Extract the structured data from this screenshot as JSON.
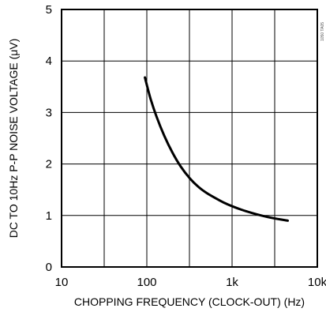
{
  "chart_data": {
    "type": "line",
    "xlabel": "CHOPPING FREQUENCY (CLOCK-OUT) (Hz)",
    "ylabel": "DC TO 10Hz P-P NOISE VOLTAGE (μV)",
    "xscale": "log",
    "xlim": [
      10,
      10000
    ],
    "ylim": [
      0,
      5
    ],
    "x_ticks": [
      10,
      100,
      1000,
      10000
    ],
    "x_tick_labels": [
      "10",
      "100",
      "1k",
      "10k"
    ],
    "y_ticks": [
      0,
      1,
      2,
      3,
      4,
      5
    ],
    "y_tick_labels": [
      "0",
      "1",
      "2",
      "3",
      "4",
      "5"
    ],
    "grid": true,
    "series": [
      {
        "x": [
          95,
          110,
          130,
          160,
          200,
          250,
          320,
          400,
          500,
          650,
          800,
          1000,
          1300,
          1700,
          2200,
          3000,
          4500
        ],
        "y": [
          3.68,
          3.28,
          2.92,
          2.55,
          2.22,
          1.95,
          1.72,
          1.56,
          1.44,
          1.33,
          1.25,
          1.18,
          1.11,
          1.05,
          1.0,
          0.95,
          0.9
        ]
      }
    ]
  },
  "side_code": "1050 TA05"
}
